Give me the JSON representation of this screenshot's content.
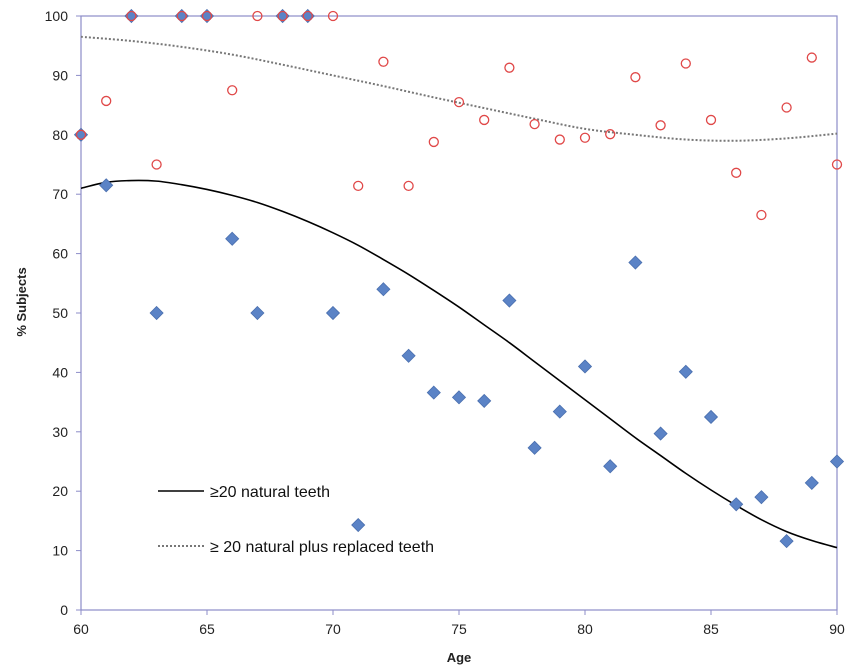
{
  "chart_data": {
    "type": "scatter",
    "title": "",
    "xlabel": "Age",
    "ylabel": "% Subjects",
    "xlim": [
      60,
      90
    ],
    "ylim": [
      0,
      100
    ],
    "x_ticks": [
      60,
      65,
      70,
      75,
      80,
      85,
      90
    ],
    "y_ticks": [
      0,
      10,
      20,
      30,
      40,
      50,
      60,
      70,
      80,
      90,
      100
    ],
    "grid": false,
    "legend_position": "bottom-left",
    "series": [
      {
        "marker": "diamond",
        "color": "#5b83c6",
        "points": [
          [
            60,
            80
          ],
          [
            61,
            71.5
          ],
          [
            62,
            100
          ],
          [
            63,
            50
          ],
          [
            64,
            100
          ],
          [
            65,
            100
          ],
          [
            66,
            62.5
          ],
          [
            67,
            50
          ],
          [
            68,
            100
          ],
          [
            69,
            100
          ],
          [
            70,
            50
          ],
          [
            71,
            14.3
          ],
          [
            72,
            54
          ],
          [
            73,
            42.8
          ],
          [
            74,
            36.6
          ],
          [
            75,
            35.8
          ],
          [
            76,
            35.2
          ],
          [
            77,
            52.1
          ],
          [
            78,
            27.3
          ],
          [
            79,
            33.4
          ],
          [
            80,
            41
          ],
          [
            81,
            24.2
          ],
          [
            82,
            58.5
          ],
          [
            83,
            29.7
          ],
          [
            84,
            40.1
          ],
          [
            85,
            32.5
          ],
          [
            86,
            17.8
          ],
          [
            87,
            19
          ],
          [
            88,
            11.6
          ],
          [
            89,
            21.4
          ],
          [
            90,
            25
          ]
        ]
      },
      {
        "marker": "open-circle",
        "color": "#e04848",
        "points": [
          [
            60,
            80
          ],
          [
            61,
            85.7
          ],
          [
            62,
            100
          ],
          [
            63,
            75
          ],
          [
            64,
            100
          ],
          [
            65,
            100
          ],
          [
            66,
            87.5
          ],
          [
            67,
            100
          ],
          [
            68,
            100
          ],
          [
            69,
            100
          ],
          [
            70,
            100
          ],
          [
            71,
            71.4
          ],
          [
            72,
            92.3
          ],
          [
            73,
            71.4
          ],
          [
            74,
            78.8
          ],
          [
            75,
            85.5
          ],
          [
            76,
            82.5
          ],
          [
            77,
            91.3
          ],
          [
            78,
            81.8
          ],
          [
            79,
            79.2
          ],
          [
            80,
            79.5
          ],
          [
            81,
            80.1
          ],
          [
            82,
            89.7
          ],
          [
            83,
            81.6
          ],
          [
            84,
            92
          ],
          [
            85,
            82.5
          ],
          [
            86,
            73.6
          ],
          [
            87,
            66.5
          ],
          [
            88,
            84.6
          ],
          [
            89,
            93
          ],
          [
            90,
            75
          ]
        ]
      },
      {
        "name": "≥20 natural teeth",
        "type": "line",
        "style": "solid",
        "color": "#000000",
        "x": [
          60,
          61,
          62,
          63,
          64,
          65,
          66,
          67,
          68,
          69,
          70,
          71,
          72,
          73,
          74,
          75,
          76,
          77,
          78,
          79,
          80,
          81,
          82,
          83,
          84,
          85,
          86,
          87,
          88,
          89,
          90
        ],
        "values": [
          71,
          72,
          72.3,
          72.2,
          71.6,
          70.8,
          69.8,
          68.6,
          67.1,
          65.4,
          63.5,
          61.4,
          59,
          56.5,
          53.8,
          51,
          48,
          45,
          41.8,
          38.6,
          35.4,
          32.2,
          29,
          26,
          23,
          20.2,
          17.6,
          15.2,
          13.2,
          11.7,
          10.5
        ]
      },
      {
        "name": "≥ 20 natural plus replaced teeth",
        "type": "line",
        "style": "dotted",
        "color": "#777777",
        "x": [
          60,
          62,
          64,
          66,
          68,
          70,
          72,
          74,
          76,
          78,
          80,
          82,
          84,
          86,
          88,
          90
        ],
        "values": [
          96.5,
          95.8,
          94.8,
          93.5,
          91.8,
          90,
          88.2,
          86.3,
          84.5,
          82.7,
          81,
          80,
          79.2,
          79,
          79.4,
          80.2
        ]
      }
    ]
  }
}
